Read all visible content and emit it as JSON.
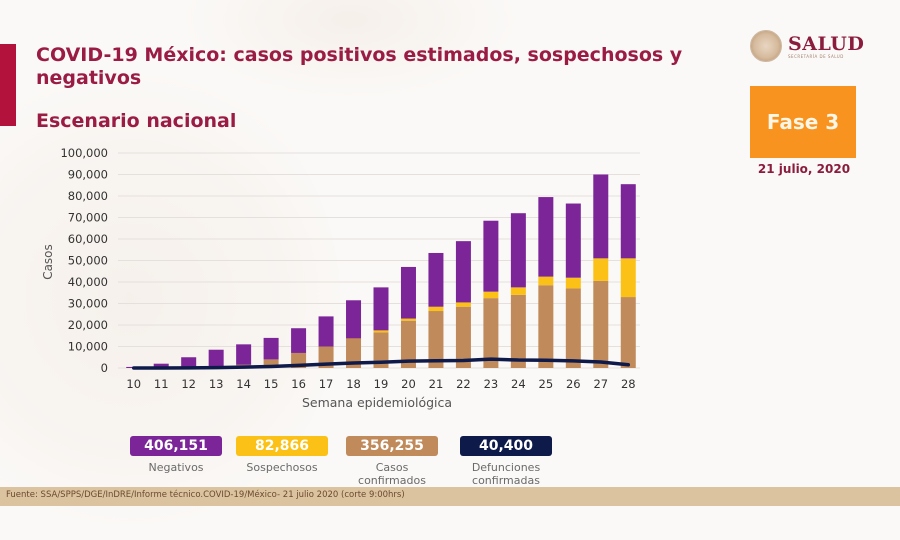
{
  "header": {
    "title": "COVID-19 México: casos positivos estimados, sospechosos y negativos",
    "subtitle": "Escenario nacional",
    "logo_text": "SALUD",
    "logo_subtext": "SECRETARÍA DE SALUD",
    "phase_label": "Fase 3",
    "date": "21 julio, 2020"
  },
  "colors": {
    "negativos": "#7b2598",
    "sospechosos": "#fbc117",
    "confirmados": "#c08a5a",
    "defunciones": "#0e1a4a",
    "title": "#9a1c45",
    "phase": "#f7931e",
    "accent": "#b2123c"
  },
  "chart_data": {
    "type": "bar",
    "stacked": true,
    "title": "",
    "xlabel": "Semana epidemiológica",
    "ylabel": "Casos",
    "ylim": [
      0,
      100000
    ],
    "yticks": [
      0,
      10000,
      20000,
      30000,
      40000,
      50000,
      60000,
      70000,
      80000,
      90000,
      100000
    ],
    "ytick_labels": [
      "0",
      "10,000",
      "20,000",
      "30,000",
      "40,000",
      "50,000",
      "60,000",
      "70,000",
      "80,000",
      "90,000",
      "100,000"
    ],
    "grid": true,
    "categories": [
      "10",
      "11",
      "12",
      "13",
      "14",
      "15",
      "16",
      "17",
      "18",
      "19",
      "20",
      "21",
      "22",
      "23",
      "24",
      "25",
      "26",
      "27",
      "28"
    ],
    "series": [
      {
        "name": "Casos confirmados",
        "kind": "bar",
        "values": [
          0,
          100,
          200,
          500,
          1500,
          4000,
          7000,
          10000,
          13500,
          16500,
          22000,
          26500,
          28500,
          32500,
          34000,
          38500,
          37000,
          40500,
          33000
        ]
      },
      {
        "name": "Sospechosos",
        "kind": "bar",
        "values": [
          0,
          0,
          0,
          0,
          0,
          0,
          0,
          0,
          200,
          1000,
          1000,
          2000,
          2000,
          3000,
          3500,
          4000,
          5000,
          10500,
          18000
        ]
      },
      {
        "name": "Negativos",
        "kind": "bar",
        "values": [
          500,
          1900,
          4800,
          8000,
          9500,
          10000,
          11500,
          14000,
          17800,
          20000,
          24000,
          25000,
          28500,
          33000,
          34500,
          37000,
          34500,
          39000,
          34500
        ]
      },
      {
        "name": "Defunciones confirmadas",
        "kind": "line",
        "values": [
          0,
          20,
          80,
          200,
          400,
          700,
          1200,
          1800,
          2300,
          2700,
          3200,
          3400,
          3500,
          4100,
          3700,
          3600,
          3300,
          2800,
          1500
        ]
      }
    ],
    "legend": "bottom"
  },
  "summary": [
    {
      "value": "406,151",
      "label": "Negativos",
      "color_key": "negativos"
    },
    {
      "value": "82,866",
      "label": "Sospechosos",
      "color_key": "sospechosos"
    },
    {
      "value": "356,255",
      "label": "Casos confirmados",
      "color_key": "confirmados"
    },
    {
      "value": "40,400",
      "label": "Defunciones confirmadas",
      "color_key": "defunciones"
    }
  ],
  "footer": {
    "source": "Fuente: SSA/SPPS/DGE/InDRE/Informe técnico.COVID-19/México- 21 julio 2020 (corte 9:00hrs)"
  }
}
